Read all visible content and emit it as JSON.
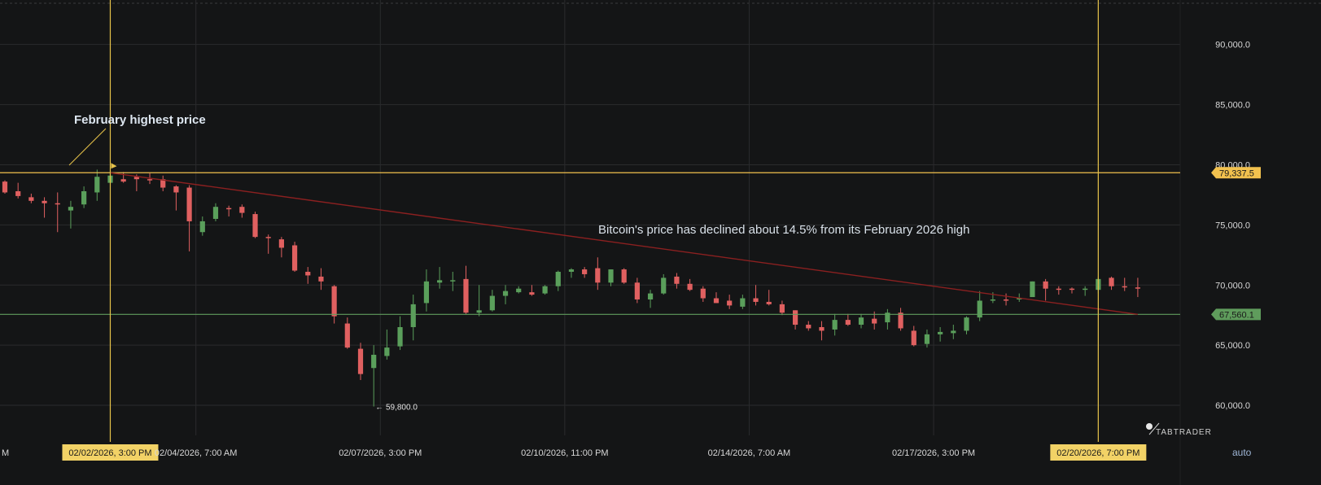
{
  "chart_data": {
    "type": "candlestick",
    "y_axis": {
      "ticks": [
        "90,000.0",
        "85,000.0",
        "80,000.0",
        "75,000.0",
        "70,000.0",
        "65,000.0",
        "60,000.0"
      ],
      "tick_values": [
        90000,
        85000,
        80000,
        75000,
        70000,
        65000,
        60000
      ],
      "range": [
        57500,
        93700
      ]
    },
    "x_axis": {
      "labels": [
        {
          "text": "M",
          "t": 0
        },
        {
          "text": "02/02/2026, 3:00 PM",
          "t": 16,
          "highlight": true
        },
        {
          "text": "02/04/2026, 7:00 AM",
          "t": 29
        },
        {
          "text": "02/07/2026, 3:00 PM",
          "t": 57
        },
        {
          "text": "02/10/2026, 11:00 PM",
          "t": 85
        },
        {
          "text": "02/14/2026, 7:00 AM",
          "t": 113
        },
        {
          "text": "02/17/2026, 3:00 PM",
          "t": 141
        },
        {
          "text": "02/20/2026, 7:00 PM",
          "t": 166,
          "highlight": true
        }
      ],
      "range": [
        0,
        173
      ]
    },
    "candles": [
      [
        0,
        78600,
        78700,
        77600,
        77700
      ],
      [
        2,
        77800,
        78500,
        77200,
        77400
      ],
      [
        4,
        77300,
        77600,
        76800,
        77000
      ],
      [
        6,
        77000,
        77300,
        75600,
        76800
      ],
      [
        8,
        76800,
        77700,
        74400,
        76700
      ],
      [
        10,
        76200,
        77000,
        74700,
        76500
      ],
      [
        12,
        76700,
        78200,
        76400,
        77800
      ],
      [
        14,
        77700,
        79600,
        77000,
        79000
      ],
      [
        16,
        78500,
        79800,
        77700,
        79100
      ],
      [
        18,
        78800,
        79400,
        78500,
        78600
      ],
      [
        20,
        79000,
        79200,
        77800,
        78800
      ],
      [
        22,
        78800,
        79300,
        78400,
        78700
      ],
      [
        24,
        78800,
        79100,
        77800,
        78100
      ],
      [
        26,
        78200,
        78300,
        76200,
        77700
      ],
      [
        28,
        78100,
        78300,
        72800,
        75300
      ],
      [
        30,
        74400,
        75700,
        74100,
        75300
      ],
      [
        32,
        75500,
        76800,
        75300,
        76500
      ],
      [
        34,
        76400,
        76600,
        75700,
        76300
      ],
      [
        36,
        76500,
        76700,
        75600,
        76000
      ],
      [
        38,
        75900,
        76100,
        73900,
        74000
      ],
      [
        40,
        74000,
        74200,
        72600,
        73900
      ],
      [
        42,
        73800,
        74000,
        72300,
        73100
      ],
      [
        44,
        73300,
        73600,
        71100,
        71200
      ],
      [
        46,
        71100,
        71500,
        70100,
        70800
      ],
      [
        48,
        70700,
        71400,
        69600,
        70300
      ],
      [
        50,
        69900,
        70000,
        66800,
        67400
      ],
      [
        52,
        66800,
        67300,
        64700,
        64800
      ],
      [
        54,
        64700,
        65200,
        62100,
        62600
      ],
      [
        56,
        63100,
        65000,
        59900,
        64200
      ],
      [
        58,
        64100,
        66300,
        63800,
        64800
      ],
      [
        60,
        64900,
        67400,
        64600,
        66500
      ],
      [
        62,
        66500,
        69200,
        65400,
        68400
      ],
      [
        64,
        68500,
        71300,
        67800,
        70300
      ],
      [
        66,
        70200,
        71500,
        69700,
        70400
      ],
      [
        68,
        70300,
        71100,
        69500,
        70400
      ],
      [
        70,
        70500,
        71600,
        67600,
        67700
      ],
      [
        72,
        67700,
        70000,
        67400,
        67900
      ],
      [
        74,
        67900,
        69600,
        67800,
        69100
      ],
      [
        76,
        69100,
        70000,
        68400,
        69500
      ],
      [
        78,
        69400,
        69900,
        69300,
        69700
      ],
      [
        80,
        69400,
        70000,
        69100,
        69200
      ],
      [
        82,
        69300,
        70000,
        69200,
        69900
      ],
      [
        84,
        69900,
        71200,
        69500,
        71100
      ],
      [
        86,
        71100,
        71400,
        70600,
        71300
      ],
      [
        88,
        71300,
        71500,
        70600,
        70900
      ],
      [
        90,
        71400,
        72300,
        69600,
        70200
      ],
      [
        92,
        70200,
        71300,
        69900,
        71300
      ],
      [
        94,
        71300,
        71400,
        70100,
        70200
      ],
      [
        96,
        70200,
        70600,
        68500,
        68800
      ],
      [
        98,
        68800,
        69600,
        68100,
        69300
      ],
      [
        100,
        69300,
        70900,
        69200,
        70600
      ],
      [
        102,
        70700,
        71000,
        69700,
        70100
      ],
      [
        104,
        70100,
        70500,
        69500,
        69600
      ],
      [
        106,
        69700,
        69900,
        68600,
        68900
      ],
      [
        108,
        68900,
        69400,
        68500,
        68500
      ],
      [
        110,
        68700,
        69200,
        68000,
        68300
      ],
      [
        112,
        68200,
        69200,
        68000,
        68900
      ],
      [
        114,
        68900,
        70000,
        68300,
        68600
      ],
      [
        116,
        68600,
        69600,
        68300,
        68400
      ],
      [
        118,
        68400,
        68700,
        67500,
        67700
      ],
      [
        120,
        67900,
        67900,
        66300,
        66700
      ],
      [
        122,
        66700,
        67000,
        66200,
        66400
      ],
      [
        124,
        66500,
        67000,
        65400,
        66200
      ],
      [
        126,
        66300,
        67600,
        65800,
        67100
      ],
      [
        128,
        67100,
        67600,
        66600,
        66700
      ],
      [
        130,
        66700,
        67600,
        66400,
        67300
      ],
      [
        132,
        67200,
        67800,
        66300,
        66800
      ],
      [
        134,
        66900,
        68000,
        66300,
        67700
      ],
      [
        136,
        67700,
        68100,
        66200,
        66400
      ],
      [
        138,
        66200,
        66600,
        64900,
        65000
      ],
      [
        140,
        65100,
        66300,
        64800,
        65900
      ],
      [
        142,
        65900,
        66500,
        65300,
        66100
      ],
      [
        144,
        66000,
        66700,
        65500,
        66200
      ],
      [
        146,
        66200,
        67400,
        65900,
        67300
      ],
      [
        148,
        67300,
        69500,
        67000,
        68700
      ],
      [
        150,
        68700,
        69400,
        68500,
        68800
      ],
      [
        152,
        68800,
        69300,
        68300,
        68700
      ],
      [
        154,
        68800,
        69300,
        68600,
        68900
      ],
      [
        156,
        69000,
        70300,
        69100,
        70300
      ],
      [
        158,
        70300,
        70500,
        68700,
        69700
      ],
      [
        160,
        69700,
        69900,
        69200,
        69600
      ],
      [
        162,
        69700,
        69800,
        69300,
        69600
      ],
      [
        164,
        69600,
        69900,
        69100,
        69700
      ],
      [
        166,
        69600,
        70700,
        69300,
        70500
      ],
      [
        168,
        70600,
        70700,
        69600,
        69900
      ],
      [
        170,
        69900,
        70600,
        69500,
        69800
      ],
      [
        172,
        69800,
        70600,
        69000,
        69700
      ]
    ],
    "reference_lines": [
      {
        "label": "79,337.5",
        "value": 79337.5,
        "color": "#f2c14e"
      },
      {
        "label": "67,560.1",
        "value": 67560.1,
        "color": "#5f9c5c"
      }
    ],
    "annotations": {
      "high_label": "February highest price",
      "decline_text": "Bitcoin's price has declined about 14.5% from its February 2026 high",
      "low_label": "← 59,800.0"
    },
    "brand": "TABTRADER",
    "scale_mode": "auto",
    "colors": {
      "up": "#5a9f5b",
      "down": "#e06060",
      "grid": "#2a2b2d",
      "background": "#141516",
      "trend": "#8b2020",
      "vline": "#e6c24a"
    }
  }
}
